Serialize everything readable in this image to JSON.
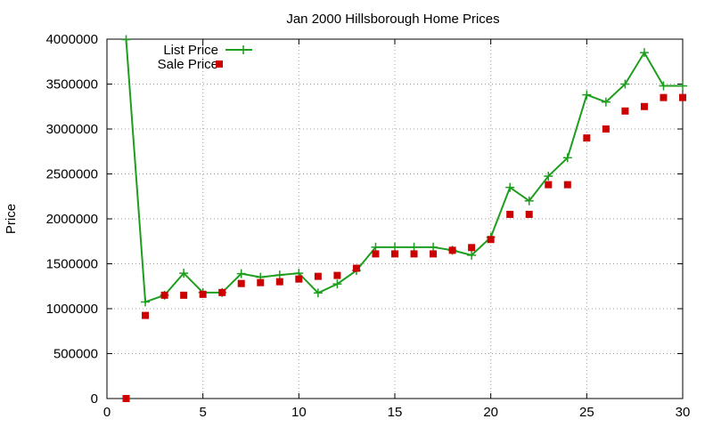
{
  "chart_data": {
    "type": "line",
    "title": "Jan 2000 Hillsborough Home Prices",
    "xlabel": "",
    "ylabel": "Price",
    "xlim": [
      0,
      30
    ],
    "ylim": [
      0,
      4000000
    ],
    "x_ticks": [
      "0",
      "5",
      "10",
      "15",
      "20",
      "25",
      "30"
    ],
    "y_ticks": [
      "0",
      "500000",
      "1000000",
      "1500000",
      "2000000",
      "2500000",
      "3000000",
      "3500000",
      "4000000"
    ],
    "grid": true,
    "legend_position": "top-left",
    "series": [
      {
        "name": "List Price",
        "style": "line-with-plus-markers",
        "color": "#1e9e1e",
        "x": [
          1,
          2,
          3,
          4,
          5,
          6,
          7,
          8,
          9,
          10,
          11,
          12,
          13,
          14,
          15,
          16,
          17,
          18,
          19,
          20,
          21,
          22,
          23,
          24,
          25,
          26,
          27,
          28,
          29,
          30
        ],
        "y": [
          3995000,
          1075000,
          1150000,
          1395000,
          1180000,
          1180000,
          1390000,
          1350000,
          1375000,
          1395000,
          1175000,
          1275000,
          1425000,
          1685000,
          1685000,
          1685000,
          1685000,
          1650000,
          1595000,
          1795000,
          2350000,
          2200000,
          2475000,
          2680000,
          3380000,
          3300000,
          3500000,
          3850000,
          3480000,
          3480000
        ]
      },
      {
        "name": "Sale Price",
        "style": "square-markers",
        "color": "#cc0000",
        "x": [
          1,
          2,
          3,
          4,
          5,
          6,
          7,
          8,
          9,
          10,
          11,
          12,
          13,
          14,
          15,
          16,
          17,
          18,
          19,
          20,
          21,
          22,
          23,
          24,
          25,
          26,
          27,
          28,
          29,
          30
        ],
        "y": [
          0,
          925000,
          1150000,
          1150000,
          1160000,
          1180000,
          1280000,
          1290000,
          1300000,
          1330000,
          1360000,
          1370000,
          1450000,
          1610000,
          1610000,
          1610000,
          1610000,
          1650000,
          1680000,
          1770000,
          2050000,
          2050000,
          2380000,
          2380000,
          2900000,
          3000000,
          3200000,
          3250000,
          3350000,
          3350000
        ]
      }
    ]
  }
}
